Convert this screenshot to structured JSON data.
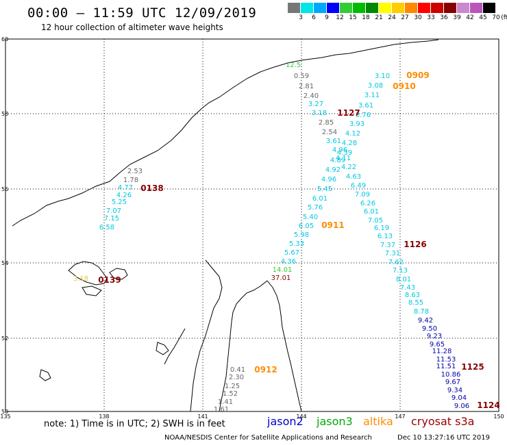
{
  "header": {
    "title": "00:00 – 11:59 UTC 12/09/2019",
    "subtitle": "12 hour collection of altimeter wave heights"
  },
  "legend": {
    "unit": "(ft)",
    "bins": [
      {
        "label": "3",
        "color": "#777777"
      },
      {
        "label": "6",
        "color": "#00e5e5"
      },
      {
        "label": "9",
        "color": "#00a8ff"
      },
      {
        "label": "12",
        "color": "#0000ff"
      },
      {
        "label": "15",
        "color": "#33cc33"
      },
      {
        "label": "18",
        "color": "#00bb00"
      },
      {
        "label": "21",
        "color": "#008800"
      },
      {
        "label": "24",
        "color": "#ffff00"
      },
      {
        "label": "27",
        "color": "#ffcc00"
      },
      {
        "label": "30",
        "color": "#ff8800"
      },
      {
        "label": "33",
        "color": "#ff0000"
      },
      {
        "label": "36",
        "color": "#cc0000"
      },
      {
        "label": "39",
        "color": "#880000"
      },
      {
        "label": "42",
        "color": "#cc88cc"
      },
      {
        "label": "45",
        "color": "#bb55bb"
      },
      {
        "label": "70",
        "color": "#000000"
      }
    ]
  },
  "axes": {
    "lat_labels": [
      "60",
      "58",
      "56",
      "54",
      "52",
      "50"
    ],
    "lon_labels": [
      "135",
      "138",
      "141",
      "144",
      "147",
      "150"
    ]
  },
  "colors": {
    "gray": "#666666",
    "cyan": "#00c8e0",
    "blue": "#0000aa",
    "green": "#33cc33",
    "yellow": "#e8c840",
    "orange": "#ff8c00",
    "darkred": "#880000"
  },
  "observations": [
    {
      "v": "12.5",
      "c": "green"
    },
    {
      "v": "0.59",
      "c": "gray"
    },
    {
      "v": "2.81",
      "c": "gray"
    },
    {
      "v": "2.40",
      "c": "gray"
    },
    {
      "v": "3.27",
      "c": "cyan"
    },
    {
      "v": "3.18",
      "c": "cyan"
    },
    {
      "v": "2.85",
      "c": "gray"
    },
    {
      "v": "2.54",
      "c": "gray"
    },
    {
      "v": "3.61",
      "c": "cyan"
    },
    {
      "v": "4.96",
      "c": "cyan"
    },
    {
      "v": "4.89",
      "c": "cyan"
    },
    {
      "v": "4.92",
      "c": "cyan"
    },
    {
      "v": "4.96",
      "c": "cyan"
    },
    {
      "v": "5.45",
      "c": "cyan"
    },
    {
      "v": "6.01",
      "c": "cyan"
    },
    {
      "v": "5.76",
      "c": "cyan"
    },
    {
      "v": "5.40",
      "c": "cyan"
    },
    {
      "v": "6.05",
      "c": "cyan"
    },
    {
      "v": "5.98",
      "c": "cyan"
    },
    {
      "v": "5.33",
      "c": "cyan"
    },
    {
      "v": "5.67",
      "c": "cyan"
    },
    {
      "v": "4.36",
      "c": "cyan"
    },
    {
      "v": "14.01",
      "c": "green"
    },
    {
      "v": "37.01",
      "c": "darkred"
    },
    {
      "v": "3.10",
      "c": "cyan"
    },
    {
      "v": "3.08",
      "c": "cyan"
    },
    {
      "v": "3.11",
      "c": "cyan"
    },
    {
      "v": "3.61",
      "c": "cyan"
    },
    {
      "v": "3.76",
      "c": "cyan"
    },
    {
      "v": "3.93",
      "c": "cyan"
    },
    {
      "v": "4.12",
      "c": "cyan"
    },
    {
      "v": "4.28",
      "c": "cyan"
    },
    {
      "v": "4.39",
      "c": "cyan"
    },
    {
      "v": "4.11",
      "c": "cyan"
    },
    {
      "v": "4.22",
      "c": "cyan"
    },
    {
      "v": "4.63",
      "c": "cyan"
    },
    {
      "v": "6.49",
      "c": "cyan"
    },
    {
      "v": "7.09",
      "c": "cyan"
    },
    {
      "v": "6.26",
      "c": "cyan"
    },
    {
      "v": "6.01",
      "c": "cyan"
    },
    {
      "v": "7.05",
      "c": "cyan"
    },
    {
      "v": "6.19",
      "c": "cyan"
    },
    {
      "v": "6.13",
      "c": "cyan"
    },
    {
      "v": "7.37",
      "c": "cyan"
    },
    {
      "v": "7.31",
      "c": "cyan"
    },
    {
      "v": "7.62",
      "c": "cyan"
    },
    {
      "v": "7.13",
      "c": "cyan"
    },
    {
      "v": "8.01",
      "c": "cyan"
    },
    {
      "v": "7.43",
      "c": "cyan"
    },
    {
      "v": "8.63",
      "c": "cyan"
    },
    {
      "v": "8.55",
      "c": "cyan"
    },
    {
      "v": "8.78",
      "c": "cyan"
    },
    {
      "v": "9.42",
      "c": "blue"
    },
    {
      "v": "9.50",
      "c": "blue"
    },
    {
      "v": "9.23",
      "c": "blue"
    },
    {
      "v": "9.65",
      "c": "blue"
    },
    {
      "v": "11.28",
      "c": "blue"
    },
    {
      "v": "11.53",
      "c": "blue"
    },
    {
      "v": "11.51",
      "c": "blue"
    },
    {
      "v": "10.86",
      "c": "blue"
    },
    {
      "v": "9.67",
      "c": "blue"
    },
    {
      "v": "9.34",
      "c": "blue"
    },
    {
      "v": "9.04",
      "c": "blue"
    },
    {
      "v": "9.06",
      "c": "blue"
    },
    {
      "v": "2.53",
      "c": "gray"
    },
    {
      "v": "1.78",
      "c": "gray"
    },
    {
      "v": "4.77",
      "c": "cyan"
    },
    {
      "v": "4.26",
      "c": "cyan"
    },
    {
      "v": "5.25",
      "c": "cyan"
    },
    {
      "v": "7.07",
      "c": "cyan"
    },
    {
      "v": "7.15",
      "c": "cyan"
    },
    {
      "v": "6.58",
      "c": "cyan"
    },
    {
      "v": "3.18",
      "c": "yellow"
    },
    {
      "v": "0.41",
      "c": "gray"
    },
    {
      "v": "2.30",
      "c": "gray"
    },
    {
      "v": "1.25",
      "c": "gray"
    },
    {
      "v": "1.52",
      "c": "gray"
    },
    {
      "v": "1.41",
      "c": "gray"
    },
    {
      "v": "1.61",
      "c": "gray"
    }
  ],
  "pass_times": [
    {
      "t": "0909",
      "c": "orange"
    },
    {
      "t": "0910",
      "c": "orange"
    },
    {
      "t": "1127",
      "c": "darkred"
    },
    {
      "t": "0138",
      "c": "darkred"
    },
    {
      "t": "0911",
      "c": "orange"
    },
    {
      "t": "1126",
      "c": "darkred"
    },
    {
      "t": "0139",
      "c": "darkred"
    },
    {
      "t": "0912",
      "c": "orange"
    },
    {
      "t": "1125",
      "c": "darkred"
    },
    {
      "t": "1124",
      "c": "darkred"
    }
  ],
  "footer": {
    "note": "note: 1) Time is in UTC; 2) SWH is in feet",
    "satellites": [
      {
        "name": "jason2",
        "color": "#0000cc"
      },
      {
        "name": "jason3",
        "color": "#00aa00"
      },
      {
        "name": "altika",
        "color": "#ff8c00"
      },
      {
        "name": "cryosat s3a",
        "color": "#990000"
      }
    ],
    "credit": "NOAA/NESDIS Center for Satellite Applications and Research",
    "timestamp": "Dec 10 13:27:16 UTC 2019"
  }
}
